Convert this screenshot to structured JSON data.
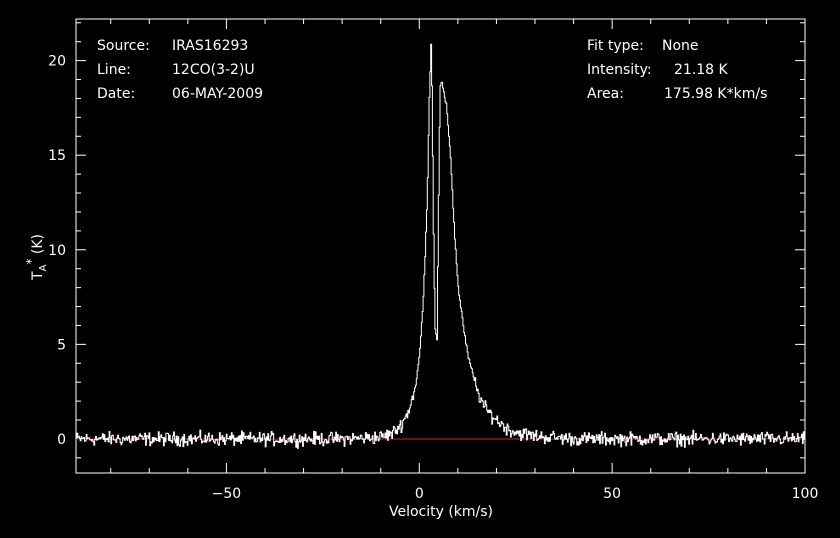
{
  "header_left": {
    "source_label": "Source:",
    "source_value": "IRAS16293",
    "line_label": "Line:",
    "line_value": "12CO(3-2)U",
    "date_label": "Date:",
    "date_value": "06-MAY-2009"
  },
  "header_right": {
    "fit_label": "Fit type:",
    "fit_value": "None",
    "intensity_label": "Intensity:",
    "intensity_value": "21.18 K",
    "area_label": "Area:",
    "area_value": "175.98 K*km/s"
  },
  "chart_data": {
    "type": "line",
    "title": "",
    "xlabel": "Velocity (km/s)",
    "ylabel_main": "T",
    "ylabel_sub": "A",
    "ylabel_sup": "*",
    "ylabel_unit": "(K)",
    "xlim": [
      -89,
      100
    ],
    "ylim": [
      -1.8,
      22.2
    ],
    "x_ticks": [
      -50,
      0,
      50,
      100
    ],
    "x_tick_labels": [
      "−50",
      "0",
      "50",
      "100"
    ],
    "y_ticks": [
      0,
      5,
      10,
      15,
      20
    ],
    "y_tick_labels": [
      "0",
      "5",
      "10",
      "15",
      "20"
    ],
    "grid": false,
    "colors": {
      "spectrum": "#ffffff",
      "baseline": "#d32020",
      "axes": "#ffffff",
      "background": "#000000"
    },
    "baseline": {
      "y": 0,
      "x_range": [
        -89,
        100
      ]
    },
    "noise_rms": 0.25,
    "series": [
      {
        "x": [
          -89,
          -20,
          -10,
          -7,
          -5,
          -3,
          -1,
          0,
          1,
          2,
          2.5,
          3,
          3.3,
          3.6,
          4,
          4.5,
          5,
          5.3,
          5.6,
          6,
          6.5,
          7,
          8,
          9,
          10,
          11,
          12,
          13,
          15,
          17,
          20,
          23,
          26,
          30,
          40,
          100
        ],
        "values": [
          0,
          0,
          0.1,
          0.3,
          0.7,
          1.4,
          2.8,
          4.5,
          7.5,
          13.0,
          18.0,
          21.18,
          17.0,
          11.0,
          6.0,
          5.3,
          14.0,
          18.5,
          18.9,
          18.6,
          18.0,
          17.5,
          15.0,
          11.0,
          8.0,
          6.5,
          5.0,
          4.0,
          2.5,
          1.6,
          1.0,
          0.5,
          0.3,
          0.15,
          0,
          0
        ]
      }
    ]
  }
}
